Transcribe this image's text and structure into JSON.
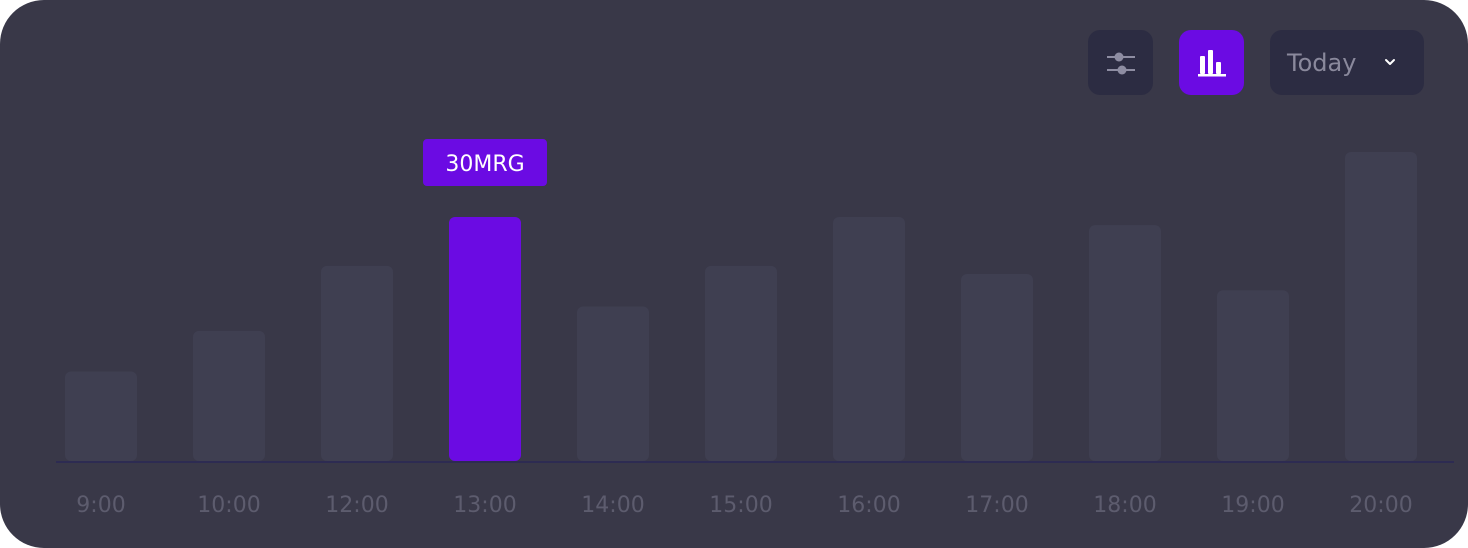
{
  "toolbar": {
    "filter_icon": "sliders-icon",
    "chart_icon": "bar-chart-icon",
    "period_label": "Today",
    "period_icon": "chevron-down-icon"
  },
  "colors": {
    "background": "#393848",
    "bar": "#3f3f51",
    "highlight": "#6b0be3",
    "axis": "#2d2b52",
    "tick_label": "#5d5c6e",
    "button_bg": "#2c2c42"
  },
  "chart_data": {
    "type": "bar",
    "categories": [
      "9:00",
      "10:00",
      "12:00",
      "13:00",
      "14:00",
      "15:00",
      "16:00",
      "17:00",
      "18:00",
      "19:00",
      "20:00"
    ],
    "values": [
      11,
      16,
      24,
      30,
      19,
      24,
      30,
      23,
      29,
      21,
      38
    ],
    "highlighted_index": 3,
    "tooltip": "30MRG",
    "ylim": [
      0,
      38
    ],
    "grid": false,
    "legend": "none"
  }
}
